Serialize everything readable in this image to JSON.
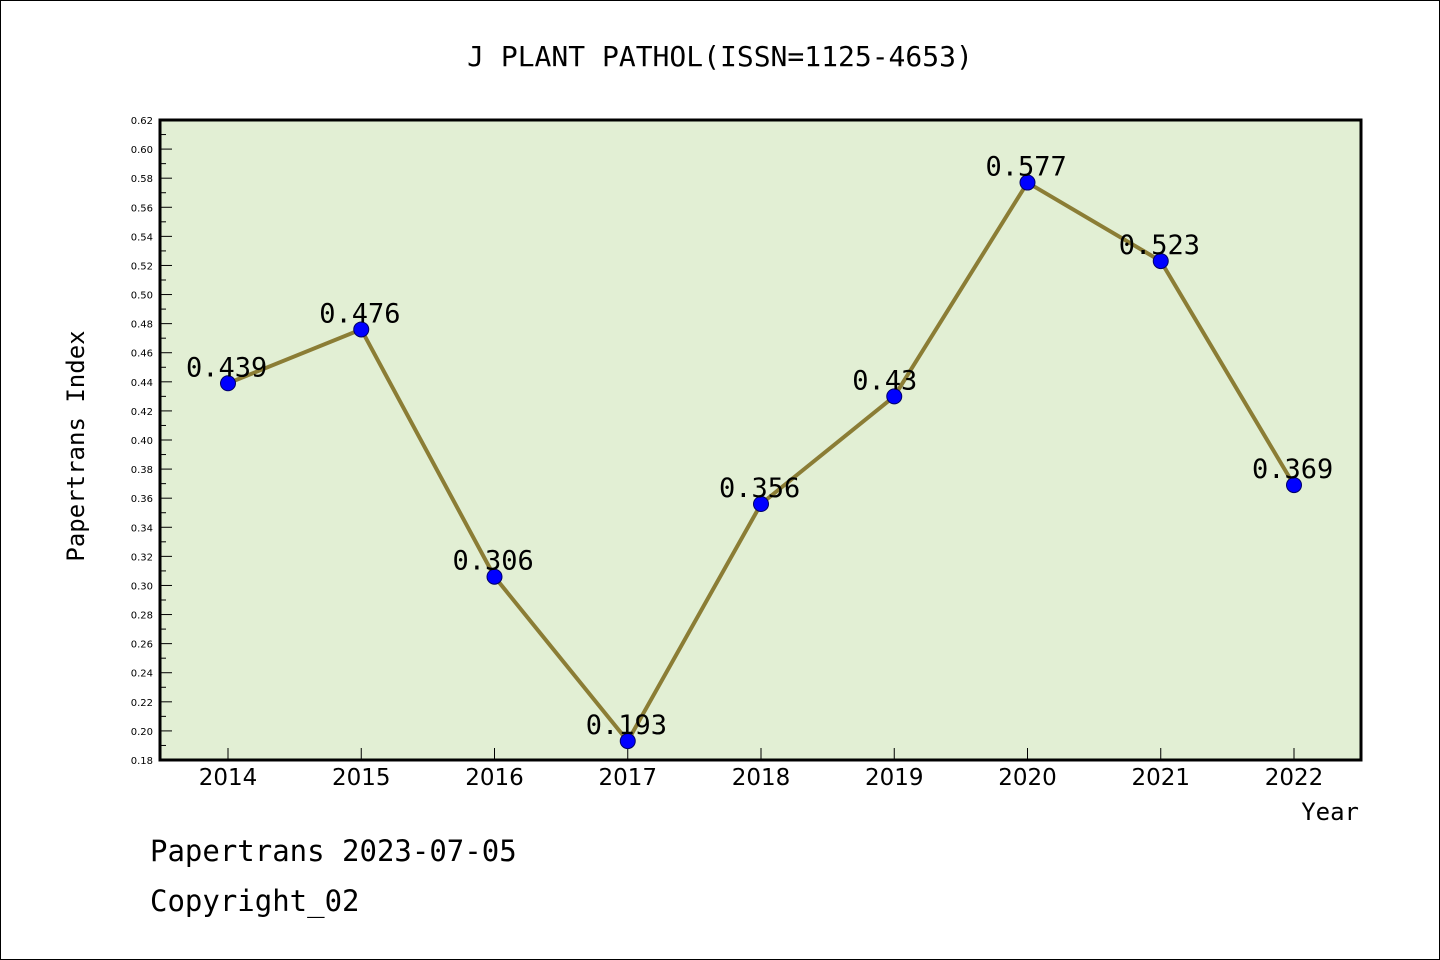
{
  "chart_data": {
    "type": "line",
    "title": "J PLANT PATHOL(ISSN=1125-4653)",
    "xlabel": "Year",
    "ylabel": "Papertrans Index",
    "categories": [
      "2014",
      "2015",
      "2016",
      "2017",
      "2018",
      "2019",
      "2020",
      "2021",
      "2022"
    ],
    "values": [
      0.439,
      0.476,
      0.306,
      0.193,
      0.356,
      0.43,
      0.577,
      0.523,
      0.369
    ],
    "data_labels": [
      "0.439",
      "0.476",
      "0.306",
      "0.193",
      "0.356",
      "0.43",
      "0.577",
      "0.523",
      "0.369"
    ],
    "ylim": [
      0.18,
      0.62
    ],
    "yticks": [
      "0.18",
      "0.20",
      "0.22",
      "0.24",
      "0.26",
      "0.28",
      "0.30",
      "0.32",
      "0.34",
      "0.36",
      "0.38",
      "0.40",
      "0.42",
      "0.44",
      "0.46",
      "0.48",
      "0.50",
      "0.52",
      "0.54",
      "0.56",
      "0.58",
      "0.60",
      "0.62"
    ],
    "grid": false,
    "colors": {
      "plot_background": "#e2efd4",
      "line": "#8b7d35",
      "marker": "#0000ff",
      "marker_edge": "#000066"
    }
  },
  "footer": {
    "line1": "Papertrans 2023-07-05",
    "line2": "Copyright_02"
  }
}
